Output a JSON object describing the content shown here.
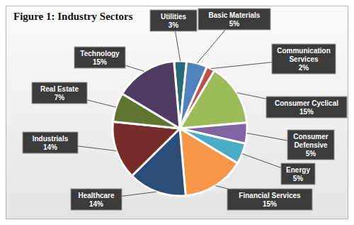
{
  "chart_data": {
    "type": "pie",
    "title": "Figure 1: Industry Sectors",
    "categories": [
      "Utilities",
      "Basic Materials",
      "Communication Services",
      "Consumer Cyclical",
      "Consumer Defensive",
      "Energy",
      "Financial Services",
      "Healthcare",
      "Industrials",
      "Real Estate",
      "Technology"
    ],
    "values": [
      3,
      5,
      2,
      15,
      5,
      5,
      15,
      14,
      14,
      7,
      15
    ],
    "value_labels": [
      "3%",
      "5%",
      "2%",
      "15%",
      "5%",
      "5%",
      "15%",
      "14%",
      "14%",
      "7%",
      "15%"
    ],
    "colors": [
      "#276a7c",
      "#4f81bd",
      "#c0504d",
      "#9bbb59",
      "#8064a2",
      "#4bacc6",
      "#f79646",
      "#2c4d75",
      "#772c2a",
      "#5f7530",
      "#4d3b62"
    ],
    "data_labels": true
  }
}
